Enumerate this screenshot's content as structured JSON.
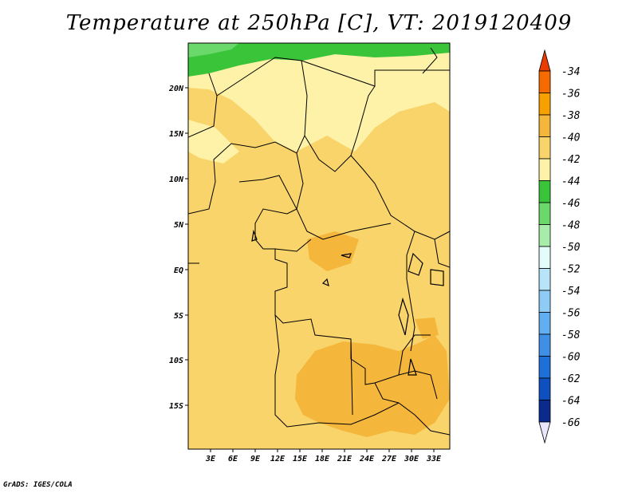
{
  "title": "Temperature at 250hPa [C], VT: 2019120409",
  "footer": "GrADS: IGES/COLA",
  "map": {
    "lat_labels": [
      "20N",
      "15N",
      "10N",
      "5N",
      "EQ",
      "5S",
      "10S",
      "15S"
    ],
    "lon_labels": [
      "3E",
      "6E",
      "9E",
      "12E",
      "15E",
      "18E",
      "21E",
      "24E",
      "27E",
      "30E",
      "33E"
    ]
  },
  "colorbar": {
    "levels": [
      "-34",
      "-36",
      "-38",
      "-40",
      "-42",
      "-44",
      "-46",
      "-48",
      "-50",
      "-52",
      "-54",
      "-56",
      "-58",
      "-60",
      "-62",
      "-64",
      "-66"
    ],
    "colors": [
      "#e83c00",
      "#f56b00",
      "#f7a000",
      "#f5b63c",
      "#f8d46a",
      "#fdf2a8",
      "#3ac43a",
      "#6ad86a",
      "#a8ecaa",
      "#e4fbfb",
      "#b8e4fa",
      "#8ecbf5",
      "#62aef0",
      "#3f8fe6",
      "#1e6fd8",
      "#0f4fbf",
      "#0a2a8c",
      "#070b5c",
      "#e8e8fa"
    ]
  }
}
